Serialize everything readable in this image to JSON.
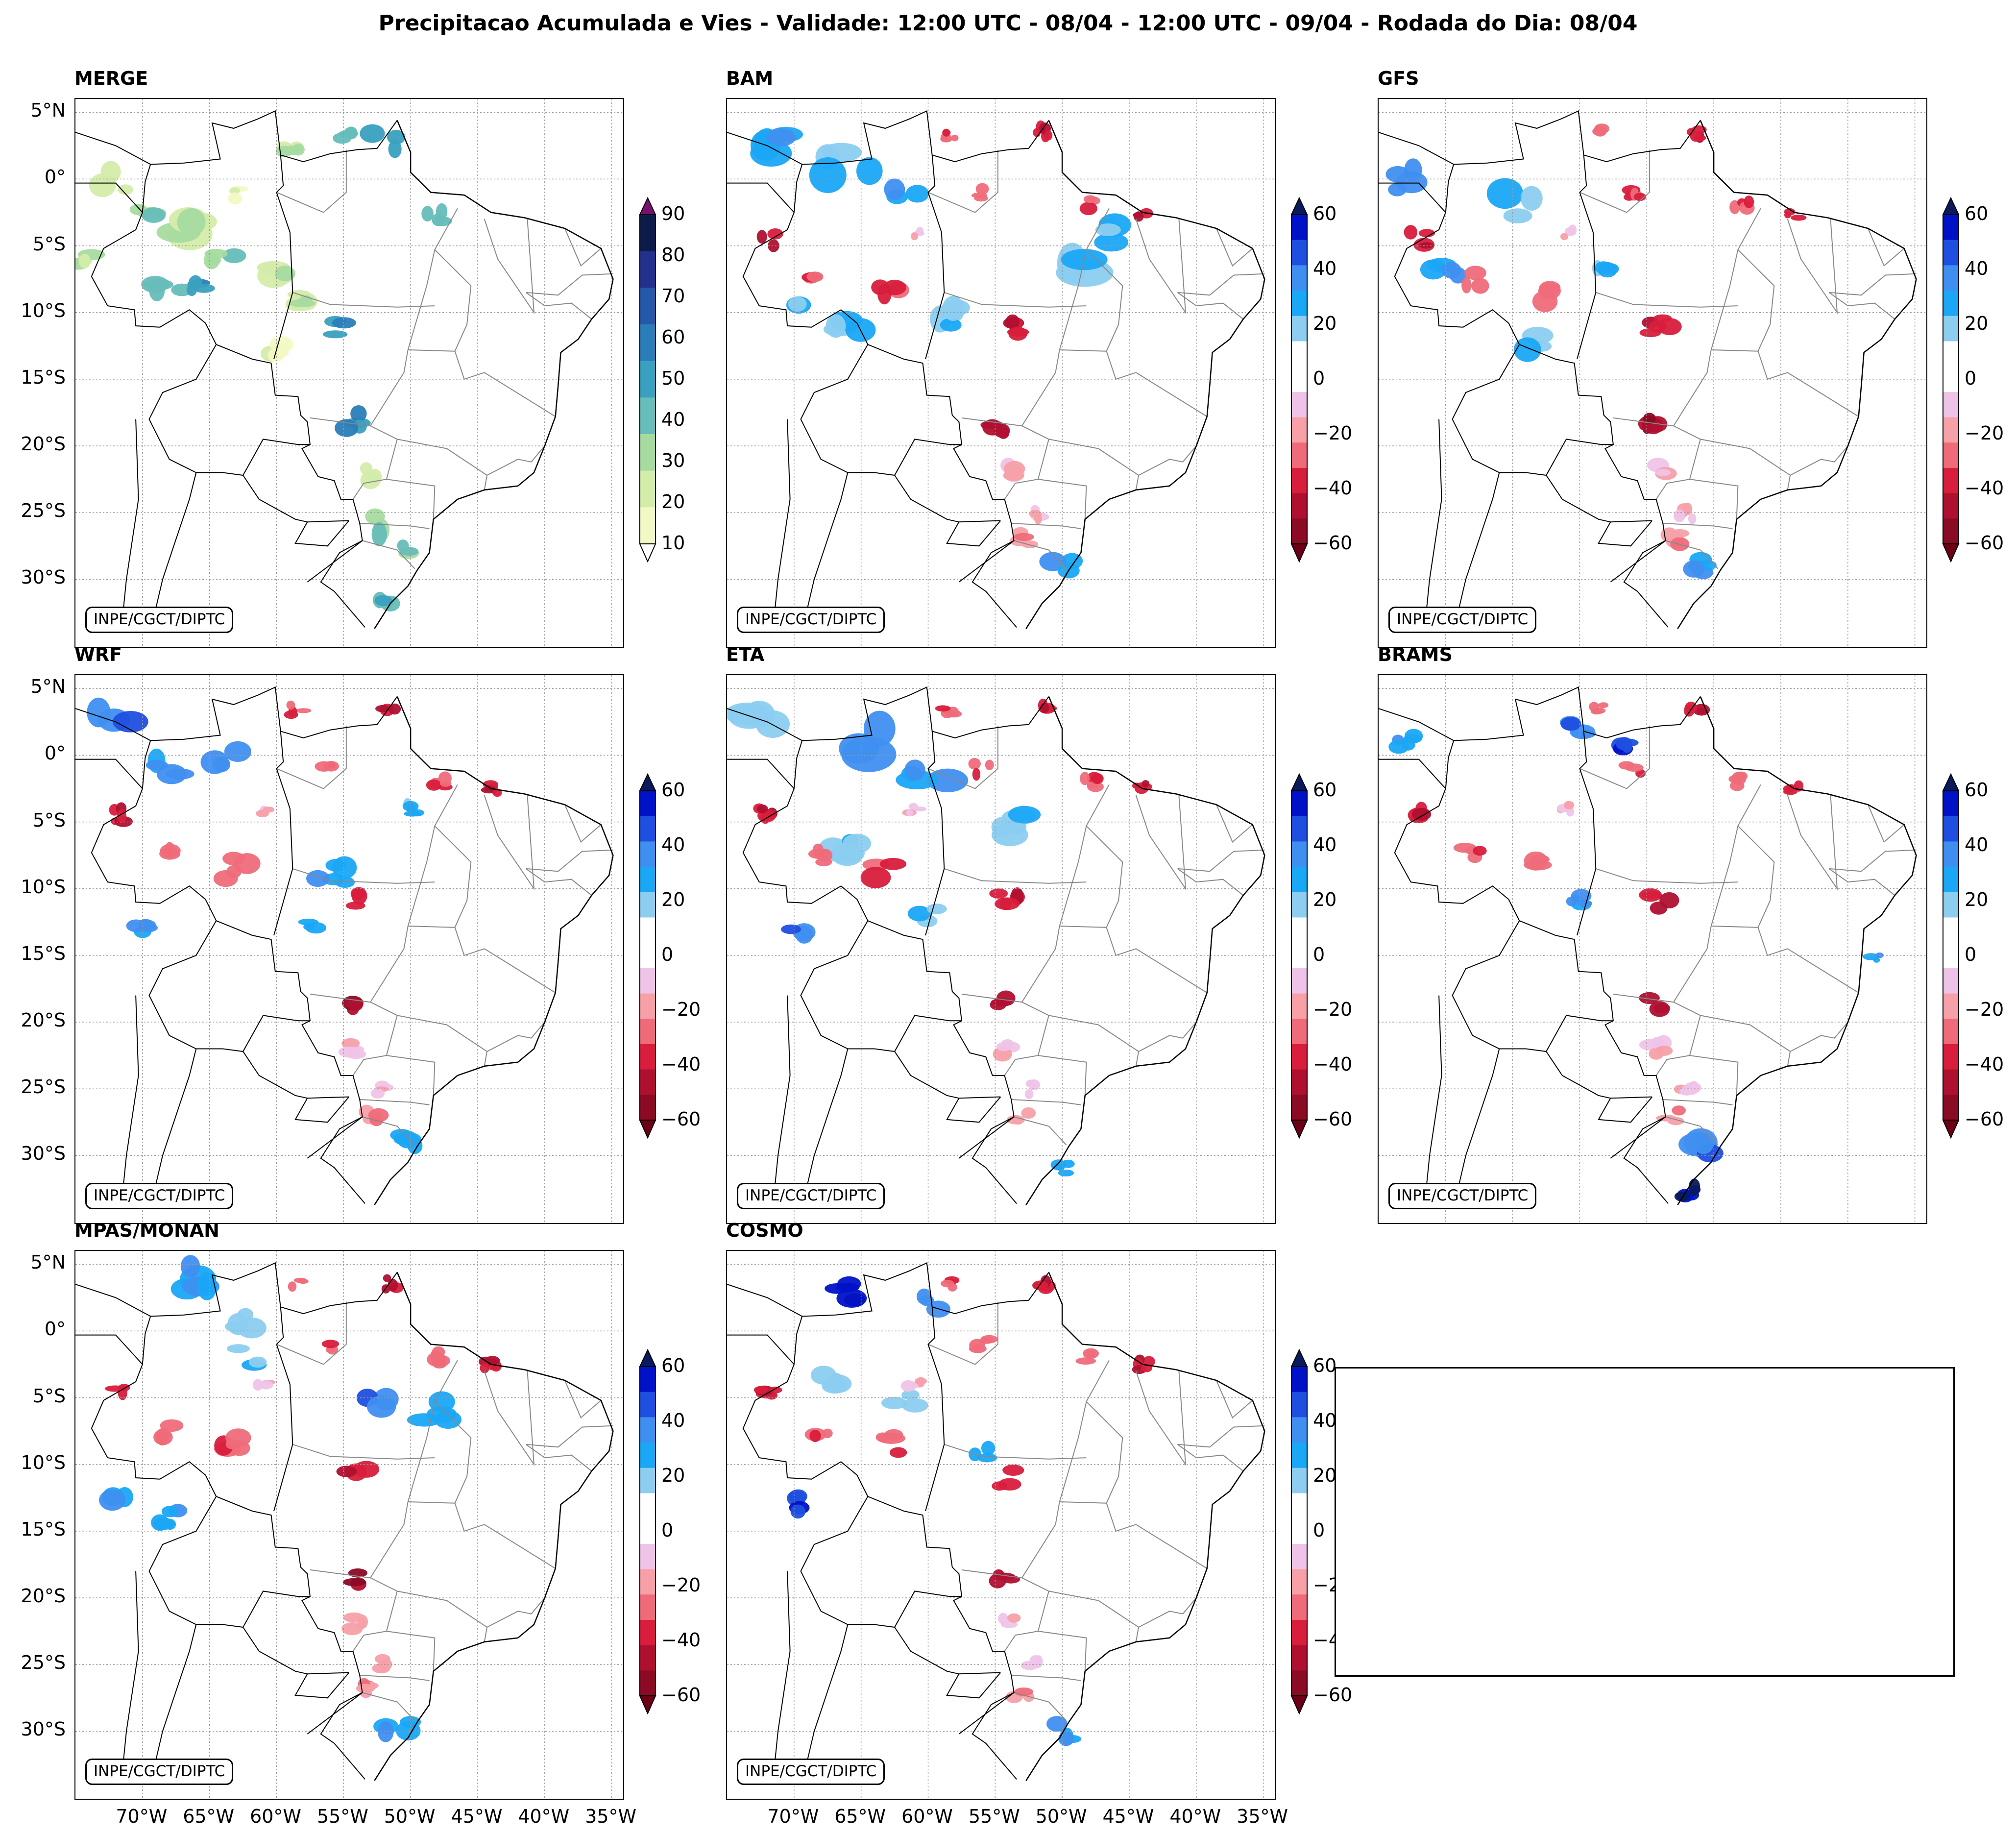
{
  "title": "Precipitacao Acumulada e Vies - Validade: 12:00 UTC - 08/04 - 12:00 UTC - 09/04 - Rodada do Dia: 08/04",
  "credit": "INPE/CGCT/DIPTC",
  "latitude_ticks": [
    "5°N",
    "0°",
    "5°S",
    "10°S",
    "15°S",
    "20°S",
    "25°S",
    "30°S"
  ],
  "longitude_ticks": [
    "70°W",
    "65°W",
    "60°W",
    "55°W",
    "50°W",
    "45°W",
    "40°W",
    "35°W"
  ],
  "panels": [
    {
      "title": "MERGE",
      "type": "precipitation"
    },
    {
      "title": "BAM",
      "type": "bias"
    },
    {
      "title": "GFS",
      "type": "bias"
    },
    {
      "title": "WRF",
      "type": "bias"
    },
    {
      "title": "ETA",
      "type": "bias"
    },
    {
      "title": "BRAMS",
      "type": "bias"
    },
    {
      "title": "MPAS/MONAN",
      "type": "bias"
    },
    {
      "title": "COSMO",
      "type": "bias"
    }
  ],
  "colorbars": {
    "precipitation": {
      "labels": [
        "90",
        "80",
        "70",
        "60",
        "50",
        "40",
        "30",
        "20",
        "10"
      ],
      "colors": [
        "#0d1b4b",
        "#23318c",
        "#2458a8",
        "#2a7db8",
        "#3aa0c0",
        "#66bdb9",
        "#a6dba0",
        "#d4ecaa",
        "#f3f9c4"
      ],
      "top_arrow": "#7a0f6e",
      "bottom_arrow": "#ffffff"
    },
    "bias": {
      "labels": [
        "60",
        "40",
        "20",
        "0",
        "−20",
        "−40",
        "−60"
      ],
      "colors": [
        "#0012c8",
        "#1f4fe0",
        "#3f8ff0",
        "#1aa7f5",
        "#8ccdf0",
        "#ffffff",
        "#ffffff",
        "#efc3e8",
        "#f7a0a8",
        "#ef6b7a",
        "#d81e3c",
        "#b01030",
        "#8b0a24"
      ],
      "top_arrow": "#0a1a5a",
      "bottom_arrow": "#6e0015"
    }
  },
  "colors": {
    "border": "#000000",
    "grid": "#999999",
    "state_lines": "#888888"
  }
}
